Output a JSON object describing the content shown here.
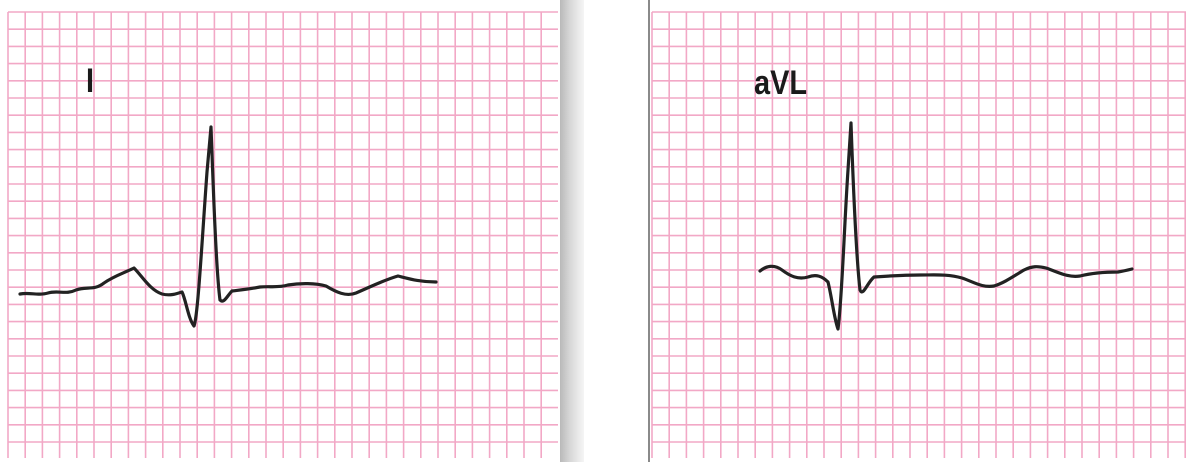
{
  "colors": {
    "grid": "#f2a8c6",
    "trace": "#222222",
    "background": "#ffffff",
    "divider": "#c8c8c8"
  },
  "panels": [
    {
      "lead_label": "I"
    },
    {
      "lead_label": "aVL"
    }
  ]
}
